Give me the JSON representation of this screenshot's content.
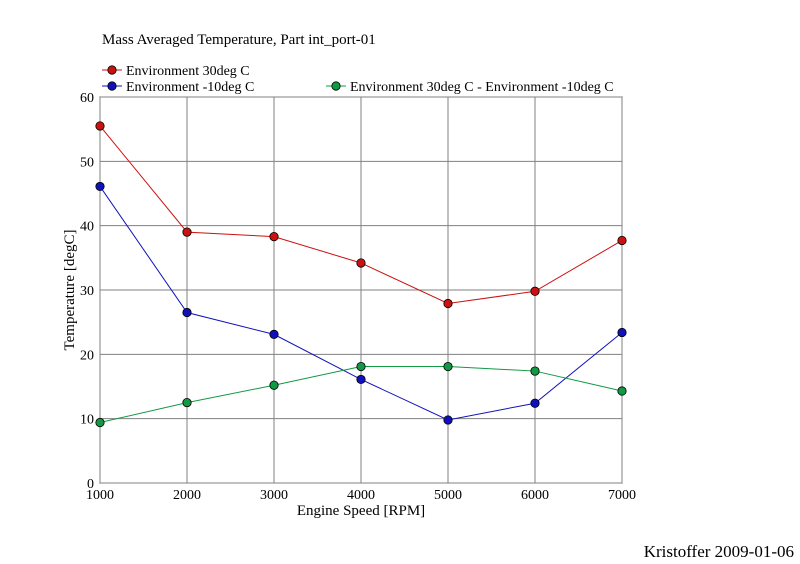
{
  "chart_data": {
    "type": "line",
    "title": "Mass Averaged Temperature, Part int_port-01",
    "xlabel": "Engine Speed [RPM]",
    "ylabel": "Temperature [degC]",
    "x": [
      1000,
      2000,
      3000,
      4000,
      5000,
      6000,
      7000
    ],
    "xlim": [
      1000,
      7000
    ],
    "ylim": [
      0,
      60
    ],
    "xticks": [
      "1000",
      "2000",
      "3000",
      "4000",
      "5000",
      "6000",
      "7000"
    ],
    "yticks": [
      "0",
      "10",
      "20",
      "30",
      "40",
      "50",
      "60"
    ],
    "grid": true,
    "legend_position": "top",
    "series": [
      {
        "name": "Environment 30deg C",
        "color": "#cc1111",
        "values": [
          55.5,
          39.0,
          38.3,
          34.2,
          27.9,
          29.8,
          37.7
        ]
      },
      {
        "name": "Environment -10deg C",
        "color": "#1111bb",
        "values": [
          46.1,
          26.5,
          23.1,
          16.1,
          9.8,
          12.4,
          23.4
        ]
      },
      {
        "name": "Environment 30deg C - Environment -10deg C",
        "color": "#119944",
        "values": [
          9.4,
          12.5,
          15.2,
          18.1,
          18.1,
          17.4,
          14.3
        ]
      }
    ]
  },
  "credit": "Kristoffer 2009-01-06"
}
